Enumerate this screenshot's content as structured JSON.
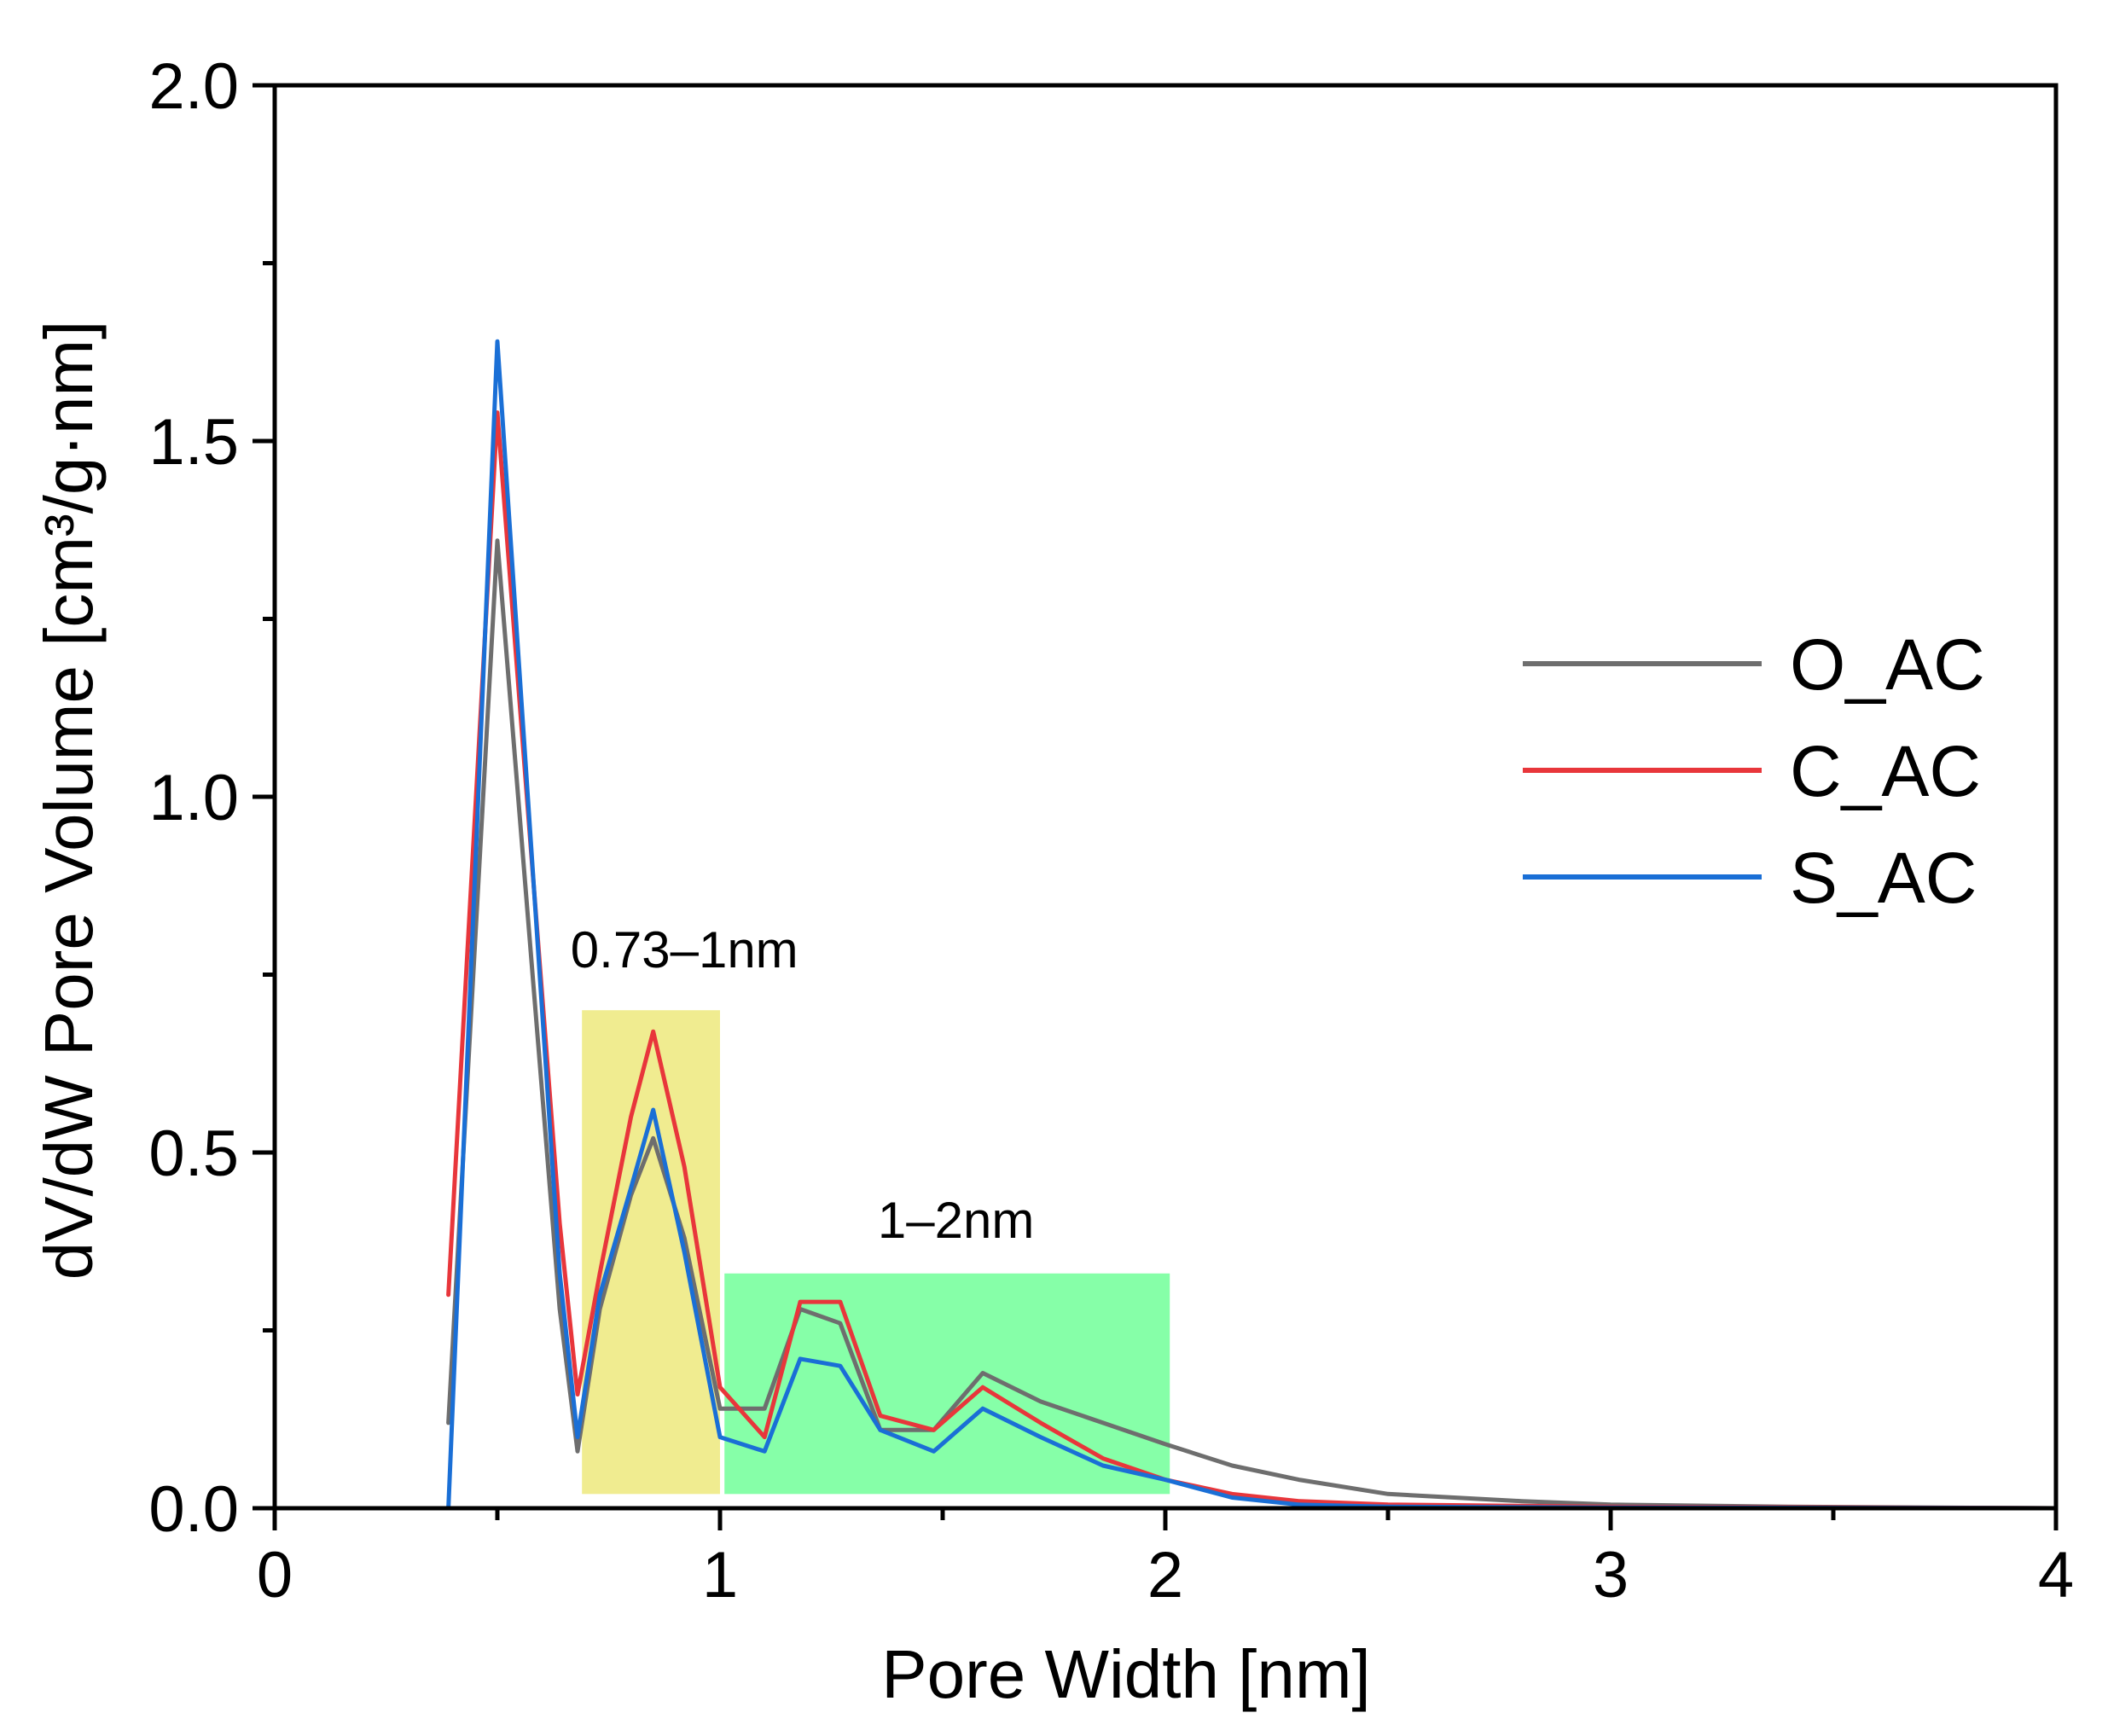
{
  "chart_data": {
    "type": "line",
    "title": "",
    "xlabel": "Pore Width [nm]",
    "ylabel": "dV/dW Pore Volume [cm³/g·nm]",
    "xlim": [
      0,
      4
    ],
    "ylim": [
      0,
      2.0
    ],
    "x_ticks": [
      0,
      1,
      2,
      3,
      4
    ],
    "x_tick_labels": [
      "0",
      "1",
      "2",
      "3",
      "4"
    ],
    "y_ticks": [
      0,
      0.5,
      1.0,
      1.5,
      2.0
    ],
    "y_tick_labels": [
      "0.0",
      "0.5",
      "1.0",
      "1.5",
      "2.0"
    ],
    "grid": false,
    "legend_position": "right",
    "series": [
      {
        "name": "O_AC",
        "color": "#6e6e6e",
        "points": [
          [
            0.39,
            0.12
          ],
          [
            0.5,
            1.36
          ],
          [
            0.64,
            0.28
          ],
          [
            0.68,
            0.08
          ],
          [
            0.73,
            0.28
          ],
          [
            0.8,
            0.44
          ],
          [
            0.85,
            0.52
          ],
          [
            0.92,
            0.38
          ],
          [
            1.0,
            0.14
          ],
          [
            1.1,
            0.14
          ],
          [
            1.18,
            0.28
          ],
          [
            1.27,
            0.26
          ],
          [
            1.36,
            0.11
          ],
          [
            1.48,
            0.11
          ],
          [
            1.59,
            0.19
          ],
          [
            1.72,
            0.15
          ],
          [
            1.86,
            0.12
          ],
          [
            2.0,
            0.09
          ],
          [
            2.15,
            0.06
          ],
          [
            2.3,
            0.04
          ],
          [
            2.5,
            0.02
          ],
          [
            2.8,
            0.01
          ],
          [
            3.0,
            0.005
          ],
          [
            3.4,
            0.002
          ],
          [
            4.0,
            0.0
          ]
        ]
      },
      {
        "name": "C_AC",
        "color": "#e8363b",
        "points": [
          [
            0.39,
            0.3
          ],
          [
            0.5,
            1.54
          ],
          [
            0.64,
            0.4
          ],
          [
            0.68,
            0.16
          ],
          [
            0.73,
            0.33
          ],
          [
            0.8,
            0.55
          ],
          [
            0.85,
            0.67
          ],
          [
            0.92,
            0.48
          ],
          [
            1.0,
            0.17
          ],
          [
            1.1,
            0.1
          ],
          [
            1.18,
            0.29
          ],
          [
            1.27,
            0.29
          ],
          [
            1.36,
            0.13
          ],
          [
            1.48,
            0.11
          ],
          [
            1.59,
            0.17
          ],
          [
            1.72,
            0.12
          ],
          [
            1.86,
            0.07
          ],
          [
            2.0,
            0.04
          ],
          [
            2.15,
            0.02
          ],
          [
            2.3,
            0.01
          ],
          [
            2.5,
            0.005
          ],
          [
            3.0,
            0.002
          ],
          [
            4.0,
            0.0
          ]
        ]
      },
      {
        "name": "S_AC",
        "color": "#1a6fd6",
        "points": [
          [
            0.39,
            0.0
          ],
          [
            0.5,
            1.64
          ],
          [
            0.64,
            0.33
          ],
          [
            0.68,
            0.1
          ],
          [
            0.73,
            0.3
          ],
          [
            0.8,
            0.45
          ],
          [
            0.85,
            0.56
          ],
          [
            0.92,
            0.36
          ],
          [
            1.0,
            0.1
          ],
          [
            1.1,
            0.08
          ],
          [
            1.18,
            0.21
          ],
          [
            1.27,
            0.2
          ],
          [
            1.36,
            0.11
          ],
          [
            1.48,
            0.08
          ],
          [
            1.59,
            0.14
          ],
          [
            1.72,
            0.1
          ],
          [
            1.86,
            0.06
          ],
          [
            2.0,
            0.04
          ],
          [
            2.15,
            0.015
          ],
          [
            2.3,
            0.005
          ],
          [
            2.5,
            0.002
          ],
          [
            3.0,
            0.001
          ],
          [
            4.0,
            0.0
          ]
        ]
      }
    ],
    "regions": [
      {
        "label": "0.73–1nm",
        "x_range": [
          0.69,
          1.0
        ],
        "y_range": [
          0.02,
          0.7
        ],
        "color": "#f0ec90"
      },
      {
        "label": "1–2nm",
        "x_range": [
          1.01,
          2.01
        ],
        "y_range": [
          0.02,
          0.33
        ],
        "color": "#86ffa8"
      }
    ]
  }
}
